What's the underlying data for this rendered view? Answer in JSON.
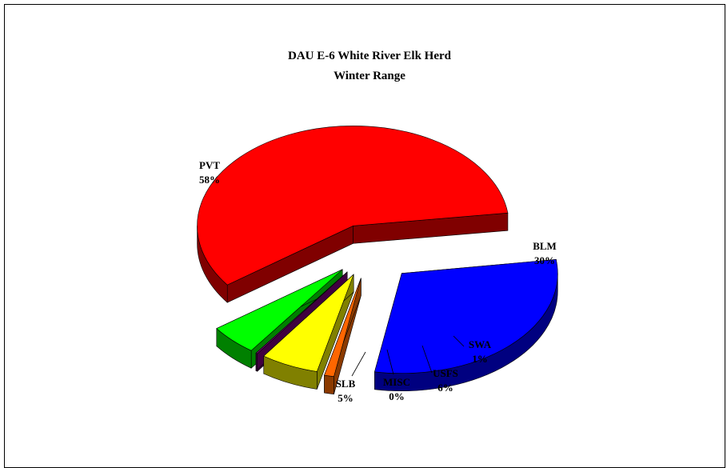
{
  "chart_data": {
    "type": "pie",
    "title": "DAU E-6 White River Elk Herd",
    "subtitle": "Winter Range",
    "slices": [
      {
        "name": "BLM",
        "value": 30,
        "label": "30%",
        "color": "#0000ff",
        "side": "#000080"
      },
      {
        "name": "SWA",
        "value": 1,
        "label": "1%",
        "color": "#ff6600",
        "side": "#8b3a00"
      },
      {
        "name": "USFS",
        "value": 6,
        "label": "6%",
        "color": "#ffff00",
        "side": "#808000"
      },
      {
        "name": "MISC",
        "value": 0,
        "label": "0%",
        "color": "#800080",
        "side": "#400040"
      },
      {
        "name": "SLB",
        "value": 5,
        "label": "5%",
        "color": "#00ff00",
        "side": "#008000"
      },
      {
        "name": "PVT",
        "value": 58,
        "label": "58%",
        "color": "#ff0000",
        "side": "#800000"
      }
    ]
  }
}
